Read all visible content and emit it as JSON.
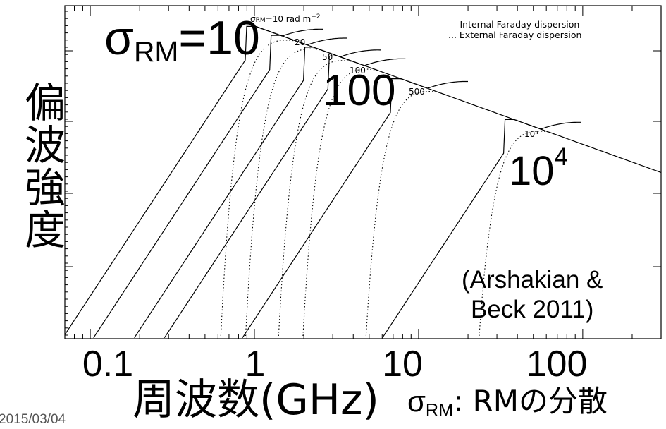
{
  "chart_data": {
    "type": "line",
    "title": "",
    "ylabel": "偏波強度",
    "xlabel": "周波数(GHz)",
    "x_scale": "log",
    "xlim": [
      0.07,
      300
    ],
    "x_ticks": [
      "0.1",
      "1",
      "10",
      "100"
    ],
    "y_scale": "log",
    "legend": [
      "— Internal Faraday dispersion",
      "... External Faraday dispersion"
    ],
    "legend_position": "top-right",
    "sigma_rm_unit": "rad m⁻²",
    "series": [
      {
        "sigma_rm": "10",
        "peak_ghz": 1.2
      },
      {
        "sigma_rm": "20",
        "peak_ghz": 1.7
      },
      {
        "sigma_rm": "50",
        "peak_ghz": 2.7
      },
      {
        "sigma_rm": "100",
        "peak_ghz": 3.8
      },
      {
        "sigma_rm": "500",
        "peak_ghz": 9.2
      },
      {
        "sigma_rm": "10⁴",
        "peak_ghz": 45
      }
    ]
  },
  "annotations": {
    "sigma_main": "σ",
    "sigma_sub": "RM",
    "sigma_eq": "=10",
    "label_100": "100",
    "label_1e4_base": "10",
    "label_1e4_exp": "4",
    "citation_line1": "(Arshakian &",
    "citation_line2": "Beck 2011)",
    "footer_sigma": "σ",
    "footer_sub": "RM",
    "footer_text": ": RMの分散",
    "small_sigma": "σ",
    "small_rm": "RM",
    "small_eq": "=10 rad m",
    "small_exp": "−2"
  },
  "date": "2015/03/04"
}
